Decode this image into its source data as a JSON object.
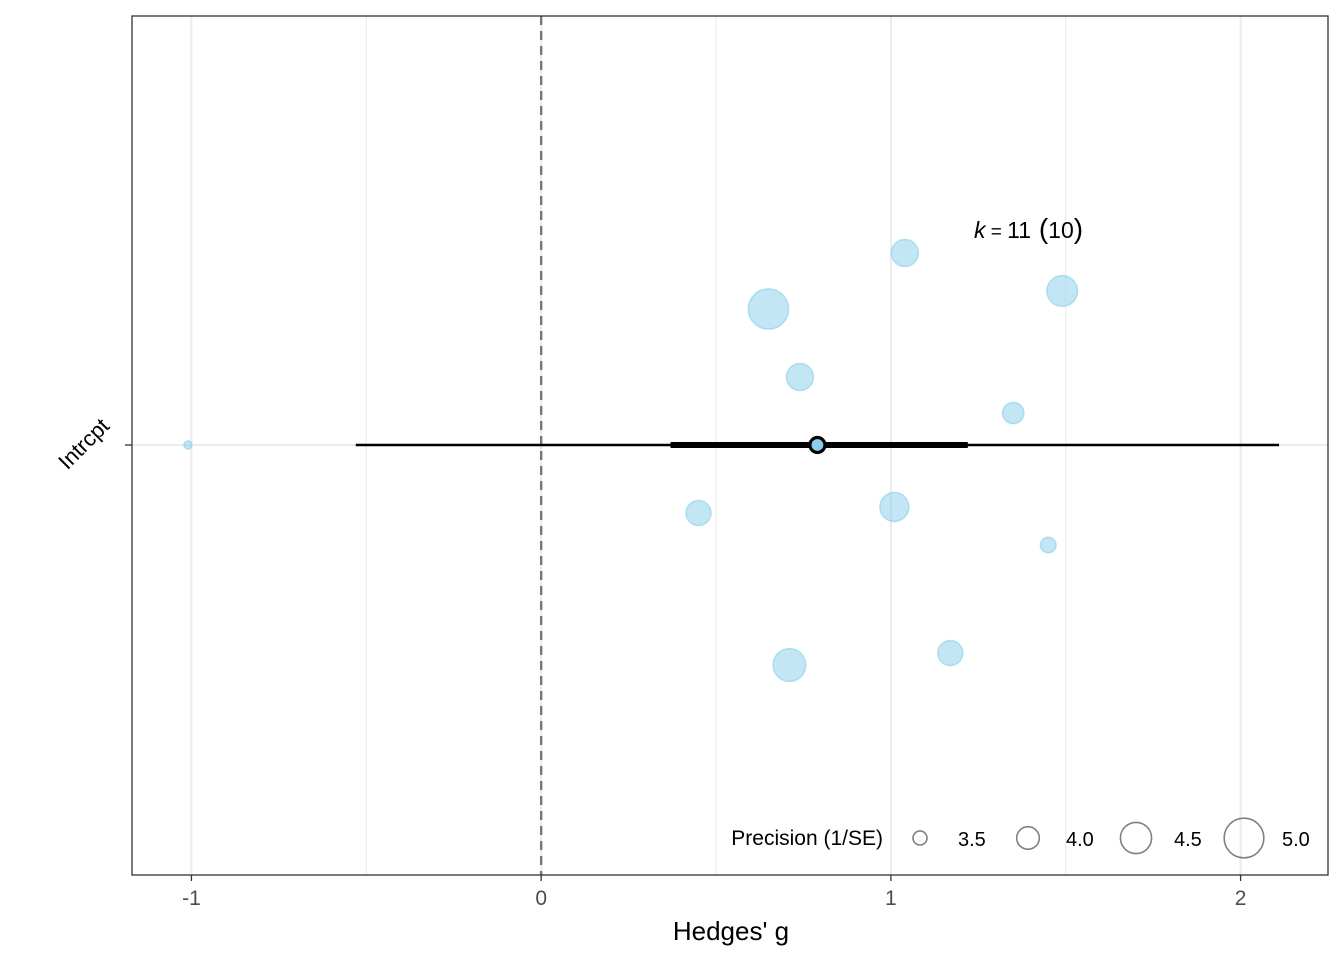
{
  "chart_data": {
    "type": "scatter",
    "subtype": "orchard-plot",
    "xlabel": "Hedges' g",
    "ylabel": "",
    "y_category": "Intrcpt",
    "xlim": [
      -1.17,
      2.25
    ],
    "x_ticks": [
      -1,
      0,
      1,
      2
    ],
    "x_tick_labels": [
      "-1",
      "0",
      "1",
      "2"
    ],
    "reference_line_x": 0,
    "summary": {
      "estimate": 0.79,
      "ci": [
        0.37,
        1.22
      ],
      "pi": [
        -0.53,
        2.11
      ]
    },
    "k_annotation": {
      "k_symbol": "k",
      "equals": " = ",
      "k_value": "11",
      "group_open": " (",
      "group_value": "10",
      "group_close": ")"
    },
    "points": [
      {
        "g": -1.01,
        "precision": 3.1,
        "jitter": 0.0
      },
      {
        "g": 0.65,
        "precision": 4.8,
        "jitter": 0.68
      },
      {
        "g": 0.74,
        "precision": 4.1,
        "jitter": 0.34
      },
      {
        "g": 1.04,
        "precision": 4.1,
        "jitter": 0.96
      },
      {
        "g": 1.49,
        "precision": 4.3,
        "jitter": 0.77
      },
      {
        "g": 1.35,
        "precision": 3.8,
        "jitter": 0.16
      },
      {
        "g": 0.45,
        "precision": 4.0,
        "jitter": -0.34
      },
      {
        "g": 1.01,
        "precision": 4.2,
        "jitter": -0.31
      },
      {
        "g": 1.45,
        "precision": 3.5,
        "jitter": -0.5
      },
      {
        "g": 1.17,
        "precision": 4.0,
        "jitter": -1.04
      },
      {
        "g": 0.71,
        "precision": 4.4,
        "jitter": -1.1
      }
    ],
    "legend": {
      "title": "Precision (1/SE)",
      "entries": [
        {
          "label": "3.5",
          "value": 3.5
        },
        {
          "label": "4.0",
          "value": 4.0
        },
        {
          "label": "4.5",
          "value": 4.5
        },
        {
          "label": "5.0",
          "value": 5.0
        }
      ],
      "placement": "bottom-right"
    },
    "colors": {
      "points_fill": "#87CEEB",
      "points_stroke": "#87CEEB",
      "summary_fill": "#87CEEB",
      "line": "#000000",
      "grid": "#EBEBEB",
      "reference": "#777777",
      "panel_border": "#333333",
      "legend_stroke": "#808080"
    }
  }
}
